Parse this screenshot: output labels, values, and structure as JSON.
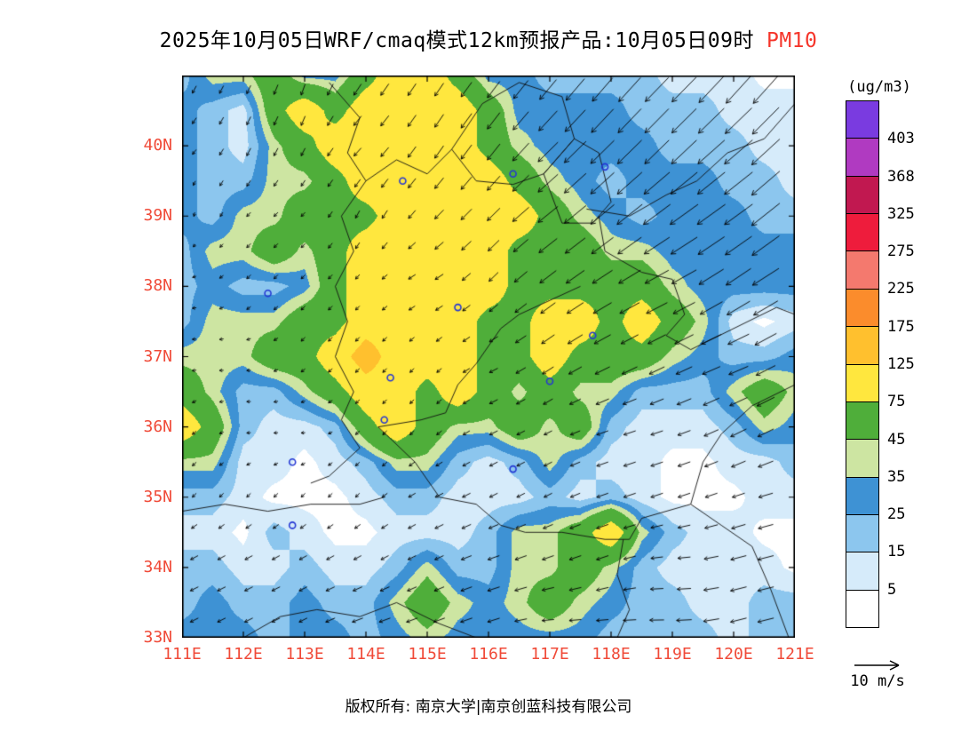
{
  "title": {
    "main": "2025年10月05日WRF/cmaq模式12km预报产品:10月05日09时",
    "pollutant": "PM10",
    "pollutant_color": "#f5352a"
  },
  "axes": {
    "lat_labels": [
      "40N",
      "39N",
      "38N",
      "37N",
      "36N",
      "35N",
      "34N",
      "33N"
    ],
    "lat_values": [
      40,
      39,
      38,
      37,
      36,
      35,
      34,
      33
    ],
    "lon_labels": [
      "111E",
      "112E",
      "113E",
      "114E",
      "115E",
      "116E",
      "117E",
      "118E",
      "119E",
      "120E",
      "121E"
    ],
    "lon_values": [
      111,
      112,
      113,
      114,
      115,
      116,
      117,
      118,
      119,
      120,
      121
    ],
    "label_color": "#f04a38"
  },
  "colorbar": {
    "unit": "(ug/m3)",
    "levels": [
      5,
      15,
      25,
      35,
      45,
      75,
      125,
      175,
      225,
      275,
      325,
      368,
      403
    ],
    "colors": [
      "#ffffff",
      "#d6ebfa",
      "#8cc6ee",
      "#3e92d4",
      "#cde5a2",
      "#4fae3a",
      "#ffe73e",
      "#ffc02e",
      "#fb8c2c",
      "#f4796e",
      "#ee1c3c",
      "#c11850",
      "#b03ac1",
      "#7a3be0"
    ]
  },
  "wind_legend": {
    "label": "10 m/s",
    "speed_ms": 10
  },
  "footer": {
    "copyright": "版权所有: 南京大学|南京创蓝科技有限公司"
  },
  "chart_data": {
    "type": "heatmap",
    "quantity": "PM10 concentration",
    "units": "ug/m3",
    "lon_min": 111,
    "lon_max": 121,
    "lat_min": 33,
    "lat_max": 41,
    "grid_step_deg": 0.5,
    "values": [
      [
        20,
        40,
        40,
        60,
        30,
        30,
        60,
        100,
        100,
        60,
        30,
        30,
        20,
        20,
        20,
        20,
        10,
        10,
        10,
        2,
        2
      ],
      [
        30,
        20,
        10,
        60,
        100,
        60,
        100,
        100,
        100,
        100,
        60,
        30,
        30,
        30,
        30,
        20,
        20,
        20,
        10,
        10,
        10
      ],
      [
        30,
        20,
        10,
        40,
        60,
        100,
        100,
        100,
        100,
        100,
        60,
        40,
        30,
        30,
        30,
        30,
        20,
        20,
        20,
        10,
        10
      ],
      [
        30,
        20,
        20,
        40,
        40,
        60,
        100,
        100,
        100,
        100,
        100,
        60,
        40,
        30,
        20,
        30,
        30,
        30,
        20,
        20,
        10
      ],
      [
        30,
        20,
        40,
        40,
        60,
        60,
        60,
        100,
        100,
        100,
        100,
        100,
        60,
        40,
        30,
        20,
        30,
        30,
        30,
        20,
        20
      ],
      [
        20,
        40,
        40,
        60,
        40,
        60,
        100,
        100,
        100,
        100,
        100,
        60,
        60,
        60,
        40,
        40,
        30,
        30,
        30,
        30,
        30
      ],
      [
        20,
        30,
        20,
        20,
        30,
        60,
        100,
        100,
        100,
        100,
        100,
        60,
        60,
        60,
        60,
        60,
        40,
        30,
        30,
        30,
        30
      ],
      [
        20,
        40,
        40,
        40,
        60,
        60,
        100,
        100,
        100,
        100,
        60,
        60,
        100,
        100,
        60,
        100,
        60,
        40,
        10,
        2,
        10
      ],
      [
        40,
        40,
        40,
        60,
        60,
        100,
        150,
        100,
        100,
        100,
        60,
        60,
        100,
        60,
        60,
        60,
        40,
        30,
        20,
        20,
        30
      ],
      [
        60,
        40,
        20,
        20,
        40,
        60,
        100,
        100,
        60,
        100,
        60,
        40,
        60,
        40,
        40,
        20,
        20,
        20,
        40,
        60,
        40
      ],
      [
        100,
        60,
        20,
        10,
        10,
        20,
        60,
        100,
        60,
        40,
        40,
        60,
        40,
        60,
        20,
        10,
        10,
        10,
        20,
        40,
        30
      ],
      [
        40,
        40,
        10,
        10,
        2,
        10,
        20,
        40,
        40,
        20,
        10,
        20,
        40,
        20,
        10,
        10,
        2,
        2,
        10,
        10,
        20
      ],
      [
        20,
        20,
        10,
        2,
        2,
        2,
        10,
        20,
        20,
        10,
        10,
        10,
        20,
        10,
        20,
        10,
        2,
        2,
        2,
        10,
        10
      ],
      [
        10,
        10,
        2,
        20,
        10,
        2,
        2,
        10,
        10,
        10,
        20,
        40,
        40,
        60,
        100,
        40,
        20,
        10,
        10,
        2,
        2
      ],
      [
        20,
        20,
        10,
        10,
        20,
        10,
        10,
        20,
        40,
        20,
        20,
        40,
        40,
        60,
        40,
        20,
        10,
        10,
        10,
        10,
        2
      ],
      [
        20,
        30,
        20,
        20,
        30,
        20,
        20,
        40,
        60,
        40,
        30,
        40,
        60,
        40,
        30,
        20,
        20,
        10,
        10,
        20,
        20
      ],
      [
        30,
        30,
        30,
        20,
        30,
        30,
        20,
        30,
        40,
        30,
        30,
        30,
        30,
        30,
        20,
        20,
        20,
        20,
        10,
        20,
        20
      ]
    ],
    "wind": {
      "grid_step_deg": 1,
      "u": [
        [
          -1,
          -1,
          -1,
          -2,
          -2,
          -3,
          -4,
          -5,
          -6,
          -6,
          -6
        ],
        [
          -1,
          -1,
          -1,
          -2,
          -2,
          -3,
          -5,
          -6,
          -6,
          -7,
          -7
        ],
        [
          0,
          -1,
          -1,
          -1,
          -2,
          -3,
          -5,
          -6,
          -7,
          -7,
          -7
        ],
        [
          -1,
          -1,
          -1,
          -1,
          -2,
          -2,
          -4,
          -5,
          -6,
          -6,
          -7
        ],
        [
          -1,
          -1,
          -1,
          -1,
          -1,
          -2,
          -3,
          -4,
          -4,
          -5,
          -5
        ],
        [
          -1,
          -1,
          -1,
          -1,
          -1,
          -2,
          -2,
          -3,
          -3,
          -4,
          -4
        ],
        [
          -1,
          -1,
          -1,
          -1,
          -2,
          -2,
          -2,
          -3,
          -3,
          -3,
          -4
        ],
        [
          -2,
          -2,
          -2,
          -2,
          -2,
          -3,
          -3,
          -3,
          -3,
          -4,
          -4
        ],
        [
          -2,
          -2,
          -2,
          -3,
          -3,
          -3,
          -3,
          -3,
          -4,
          -4,
          -4
        ]
      ],
      "v": [
        [
          -2,
          -2,
          -3,
          -3,
          -3,
          -4,
          -5,
          -6,
          -6,
          -7,
          -7
        ],
        [
          -1,
          -2,
          -2,
          -2,
          -3,
          -4,
          -5,
          -6,
          -6,
          -6,
          -7
        ],
        [
          -1,
          -1,
          -1,
          -2,
          -2,
          -3,
          -4,
          -5,
          -5,
          -5,
          -6
        ],
        [
          0,
          -1,
          -1,
          -1,
          -1,
          -2,
          -3,
          -3,
          -3,
          -4,
          -4
        ],
        [
          0,
          0,
          -1,
          -1,
          -1,
          -1,
          -2,
          -2,
          -2,
          -2,
          -3
        ],
        [
          -1,
          0,
          0,
          -1,
          -1,
          -1,
          -1,
          -1,
          -1,
          -2,
          -2
        ],
        [
          -1,
          -1,
          -1,
          -1,
          -1,
          -1,
          -1,
          -1,
          -1,
          -1,
          -1
        ],
        [
          -1,
          -1,
          -1,
          -1,
          -1,
          -1,
          -1,
          -1,
          0,
          -1,
          -1
        ],
        [
          -1,
          -1,
          -1,
          -1,
          -1,
          -1,
          0,
          0,
          0,
          -1,
          -1
        ]
      ]
    },
    "city_markers": [
      [
        114.6,
        39.5
      ],
      [
        116.4,
        39.6
      ],
      [
        117.9,
        39.7
      ],
      [
        112.4,
        37.9
      ],
      [
        115.5,
        37.7
      ],
      [
        114.4,
        36.7
      ],
      [
        114.3,
        36.1
      ],
      [
        112.8,
        35.5
      ],
      [
        116.4,
        35.4
      ],
      [
        117.7,
        37.3
      ],
      [
        117.0,
        36.65
      ],
      [
        112.8,
        34.6
      ]
    ],
    "boundaries": [
      [
        [
          113.4,
          40.9
        ],
        [
          113.9,
          40.4
        ],
        [
          113.7,
          39.9
        ],
        [
          114.0,
          39.5
        ],
        [
          113.6,
          39.0
        ],
        [
          113.8,
          38.5
        ],
        [
          113.5,
          38.0
        ],
        [
          113.7,
          37.5
        ],
        [
          113.5,
          37.0
        ],
        [
          113.8,
          36.5
        ],
        [
          113.6,
          36.1
        ],
        [
          113.9,
          35.7
        ],
        [
          113.4,
          35.3
        ],
        [
          113.1,
          35.2
        ]
      ],
      [
        [
          115.4,
          39.95
        ],
        [
          115.9,
          40.6
        ],
        [
          116.5,
          40.9
        ],
        [
          117.2,
          40.7
        ],
        [
          117.4,
          40.1
        ],
        [
          116.9,
          39.6
        ],
        [
          116.4,
          39.45
        ],
        [
          115.8,
          39.5
        ],
        [
          115.4,
          39.95
        ]
      ],
      [
        [
          116.9,
          39.6
        ],
        [
          117.4,
          40.1
        ],
        [
          117.8,
          39.9
        ],
        [
          118.0,
          39.2
        ],
        [
          117.7,
          38.9
        ],
        [
          117.2,
          38.9
        ],
        [
          116.9,
          39.6
        ]
      ],
      [
        [
          117.6,
          39.1
        ],
        [
          118.3,
          39.0
        ],
        [
          118.9,
          39.3
        ],
        [
          119.4,
          39.5
        ],
        [
          119.9,
          39.9
        ],
        [
          120.5,
          40.1
        ],
        [
          121.0,
          40.6
        ]
      ],
      [
        [
          117.8,
          39.0
        ],
        [
          117.9,
          38.5
        ],
        [
          118.5,
          38.2
        ],
        [
          119.0,
          38.1
        ],
        [
          119.2,
          37.6
        ],
        [
          118.9,
          37.3
        ],
        [
          119.3,
          37.1
        ],
        [
          120.0,
          37.4
        ],
        [
          120.7,
          37.7
        ],
        [
          121.0,
          37.6
        ]
      ],
      [
        [
          121.0,
          36.6
        ],
        [
          120.3,
          36.3
        ],
        [
          119.8,
          35.9
        ],
        [
          119.5,
          35.5
        ],
        [
          119.3,
          34.9
        ],
        [
          119.8,
          34.6
        ],
        [
          120.3,
          34.3
        ],
        [
          120.6,
          33.7
        ],
        [
          120.9,
          33.0
        ]
      ],
      [
        [
          117.5,
          38.0
        ],
        [
          117.0,
          37.8
        ],
        [
          116.5,
          37.6
        ],
        [
          116.2,
          37.4
        ],
        [
          115.8,
          36.9
        ],
        [
          115.5,
          36.6
        ],
        [
          115.3,
          36.2
        ],
        [
          114.9,
          36.1
        ],
        [
          114.2,
          36.0
        ]
      ],
      [
        [
          114.2,
          36.0
        ],
        [
          114.8,
          35.5
        ],
        [
          115.2,
          35.0
        ],
        [
          115.8,
          34.9
        ],
        [
          116.2,
          34.6
        ],
        [
          116.6,
          34.5
        ],
        [
          117.2,
          34.5
        ],
        [
          117.9,
          34.4
        ],
        [
          118.3,
          34.4
        ],
        [
          118.5,
          34.7
        ],
        [
          119.3,
          34.9
        ]
      ],
      [
        [
          112.0,
          33.0
        ],
        [
          112.6,
          33.3
        ],
        [
          113.2,
          33.4
        ],
        [
          113.9,
          33.3
        ],
        [
          114.5,
          33.5
        ],
        [
          115.2,
          33.2
        ],
        [
          115.8,
          33.0
        ]
      ],
      [
        [
          111.0,
          34.8
        ],
        [
          111.7,
          34.9
        ],
        [
          112.4,
          34.8
        ],
        [
          113.1,
          34.9
        ],
        [
          113.9,
          34.9
        ],
        [
          114.3,
          35.0
        ]
      ],
      [
        [
          118.2,
          34.4
        ],
        [
          118.1,
          33.9
        ],
        [
          118.3,
          33.4
        ],
        [
          118.1,
          33.0
        ]
      ],
      [
        [
          114.0,
          39.5
        ],
        [
          114.5,
          39.8
        ],
        [
          115.0,
          39.6
        ],
        [
          115.4,
          39.95
        ]
      ]
    ]
  }
}
